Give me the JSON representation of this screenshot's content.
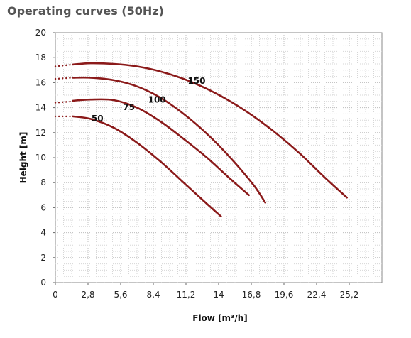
{
  "chart_data": {
    "type": "line",
    "title": "Operating curves (50Hz)",
    "xlabel": "Flow [m³/h]",
    "ylabel": "Height [m]",
    "xlim": [
      0,
      28
    ],
    "ylim": [
      0,
      20
    ],
    "x_ticks": [
      "0",
      "2,8",
      "5,6",
      "8,4",
      "11,2",
      "14",
      "16,8",
      "19,6",
      "22,4",
      "25,2"
    ],
    "y_ticks": [
      "0",
      "2",
      "4",
      "6",
      "8",
      "10",
      "12",
      "14",
      "16",
      "18",
      "20"
    ],
    "grid": true,
    "line_color": "#8B1A1A",
    "series": [
      {
        "name": "50",
        "dotted": [
          [
            0,
            13.3
          ],
          [
            1.5,
            13.3
          ]
        ],
        "points": [
          [
            1.5,
            13.3
          ],
          [
            3,
            13.1
          ],
          [
            5,
            12.4
          ],
          [
            7,
            11.2
          ],
          [
            9,
            9.7
          ],
          [
            11,
            8.0
          ],
          [
            13,
            6.3
          ],
          [
            14.2,
            5.3
          ]
        ]
      },
      {
        "name": "75",
        "dotted": [
          [
            0,
            14.4
          ],
          [
            1.5,
            14.5
          ]
        ],
        "points": [
          [
            1.5,
            14.55
          ],
          [
            3,
            14.65
          ],
          [
            5,
            14.6
          ],
          [
            7,
            14.0
          ],
          [
            9,
            12.9
          ],
          [
            11,
            11.5
          ],
          [
            13,
            10.0
          ],
          [
            15,
            8.3
          ],
          [
            16.6,
            7.0
          ]
        ]
      },
      {
        "name": "100",
        "dotted": [
          [
            0,
            16.3
          ],
          [
            1.5,
            16.4
          ]
        ],
        "points": [
          [
            1.5,
            16.4
          ],
          [
            3,
            16.4
          ],
          [
            5,
            16.2
          ],
          [
            7,
            15.7
          ],
          [
            9,
            14.8
          ],
          [
            11,
            13.5
          ],
          [
            13,
            11.9
          ],
          [
            15,
            10.0
          ],
          [
            17,
            7.8
          ],
          [
            18,
            6.4
          ]
        ]
      },
      {
        "name": "150",
        "dotted": [
          [
            0,
            17.3
          ],
          [
            1.5,
            17.45
          ]
        ],
        "points": [
          [
            1.5,
            17.45
          ],
          [
            3,
            17.55
          ],
          [
            5,
            17.5
          ],
          [
            7,
            17.3
          ],
          [
            9,
            16.9
          ],
          [
            11,
            16.3
          ],
          [
            13,
            15.5
          ],
          [
            15,
            14.5
          ],
          [
            17,
            13.3
          ],
          [
            19,
            11.9
          ],
          [
            21,
            10.3
          ],
          [
            23,
            8.5
          ],
          [
            25,
            6.8
          ]
        ]
      }
    ]
  }
}
